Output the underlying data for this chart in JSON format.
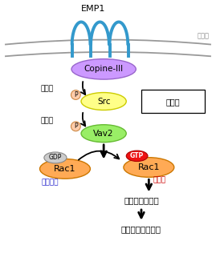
{
  "bg_color": "#ffffff",
  "cell_membrane_color": "#999999",
  "emp1_color": "#3399cc",
  "copine_color": "#cc99ff",
  "src_color": "#ffff88",
  "vav2_color": "#99ee66",
  "rac1_inactive_color": "#ffaa55",
  "rac1_active_color": "#ffaa55",
  "gdp_color": "#cccccc",
  "gtp_color": "#ee1111",
  "p_circle_color": "#ffccaa",
  "p_border_color": "#cc8844",
  "arrow_color": "#000000",
  "text_black": "#000000",
  "text_blue": "#2222cc",
  "text_red": "#cc0000",
  "text_gray": "#888888",
  "fig_width": 2.69,
  "fig_height": 3.16,
  "dpi": 100,
  "xlim": [
    0,
    10
  ],
  "ylim": [
    0,
    11.75
  ]
}
